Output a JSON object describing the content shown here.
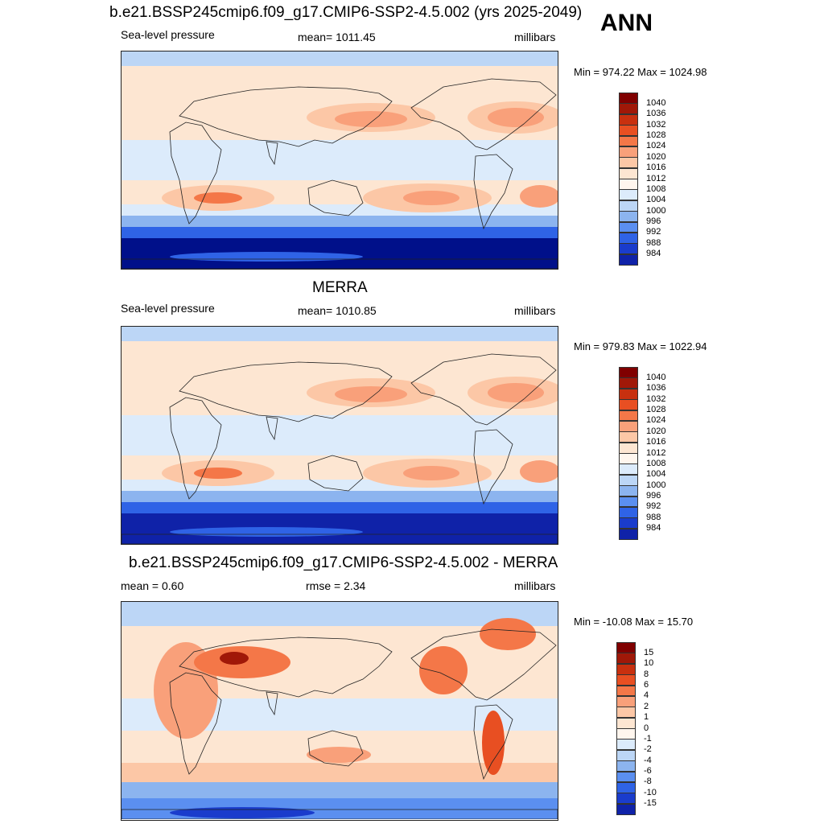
{
  "season": "ANN",
  "palette": {
    "warm": [
      "#fde6d2",
      "#fcc7a6",
      "#f9a07a",
      "#f47748",
      "#e84f22",
      "#c8300f",
      "#a01808",
      "#800000"
    ],
    "cool": [
      "#dcebfb",
      "#bcd6f6",
      "#8cb4ef",
      "#5b8ff0",
      "#2f63e6",
      "#1a3ccc",
      "#0f22a8",
      "#00108a"
    ]
  },
  "panels": [
    {
      "title": "b.e21.BSSP245cmip6.f09_g17.CMIP6-SSP2-4.5.002 (yrs 2025-2049)",
      "left_label": "Sea-level pressure",
      "center_label": "mean= 1011.45",
      "right_label": "millibars",
      "minmax": "Min = 974.22 Max = 1024.98",
      "levels": [
        "1040",
        "1036",
        "1032",
        "1028",
        "1024",
        "1020",
        "1016",
        "1012",
        "1008",
        "1004",
        "1000",
        "996",
        "992",
        "988",
        "984"
      ]
    },
    {
      "title": "MERRA",
      "left_label": "Sea-level pressure",
      "center_label": "mean= 1010.85",
      "right_label": "millibars",
      "minmax": "Min = 979.83 Max = 1022.94",
      "levels": [
        "1040",
        "1036",
        "1032",
        "1028",
        "1024",
        "1020",
        "1016",
        "1012",
        "1008",
        "1004",
        "1000",
        "996",
        "992",
        "988",
        "984"
      ]
    },
    {
      "title": "b.e21.BSSP245cmip6.f09_g17.CMIP6-SSP2-4.5.002 - MERRA",
      "left_label": "mean =   0.60",
      "center_label": "rmse =   2.34",
      "right_label": "millibars",
      "minmax": "Min = -10.08 Max =  15.70",
      "levels": [
        "15",
        "10",
        "8",
        "6",
        "4",
        "2",
        "1",
        "0",
        "-1",
        "-2",
        "-4",
        "-6",
        "-8",
        "-10",
        "-15"
      ]
    }
  ]
}
